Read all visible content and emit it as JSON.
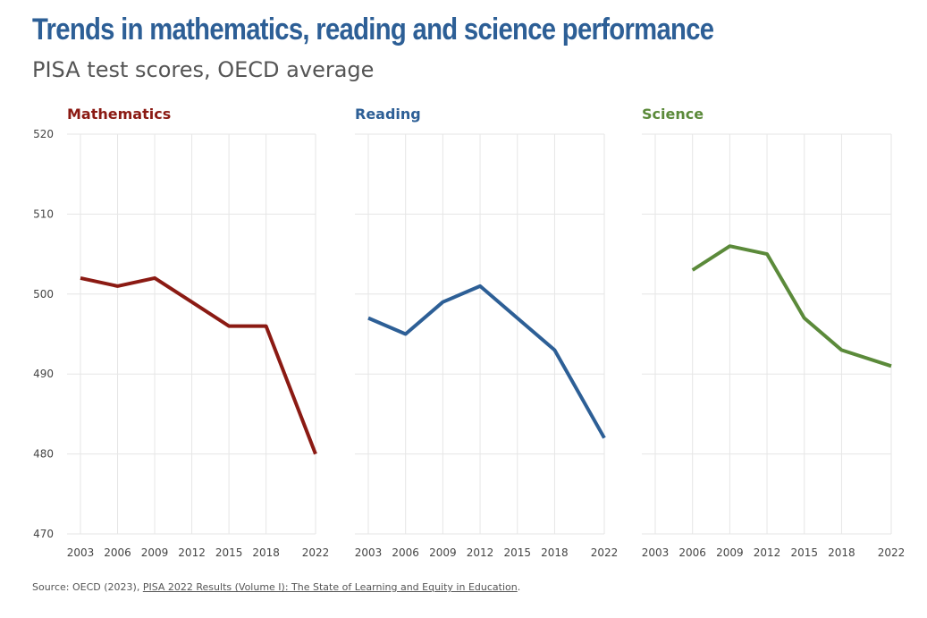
{
  "title": "Trends in mathematics, reading and science performance",
  "subtitle": "PISA test scores, OECD average",
  "source": {
    "prefix": "Source: OECD (2023), ",
    "link_text": "PISA 2022 Results (Volume I): The State of Learning and Equity in Education",
    "suffix": "."
  },
  "colors": {
    "mathematics": "#8b1a13",
    "reading": "#2d5f96",
    "science": "#5b8a3a",
    "grid": "#e6e6e6",
    "tick_text": "#444444"
  },
  "chart_data": [
    {
      "type": "line",
      "title": "Mathematics",
      "x": [
        2003,
        2006,
        2009,
        2012,
        2015,
        2018,
        2022
      ],
      "values": [
        502,
        501,
        502,
        499,
        496,
        496,
        480
      ],
      "xlabel": "",
      "ylabel": "",
      "ylim": [
        470,
        520
      ],
      "yticks": [
        470,
        480,
        490,
        500,
        510,
        520
      ],
      "color_key": "mathematics",
      "grid": true
    },
    {
      "type": "line",
      "title": "Reading",
      "x": [
        2003,
        2006,
        2009,
        2012,
        2015,
        2018,
        2022
      ],
      "values": [
        497,
        495,
        499,
        501,
        497,
        493,
        482
      ],
      "xlabel": "",
      "ylabel": "",
      "ylim": [
        470,
        520
      ],
      "yticks": [
        470,
        480,
        490,
        500,
        510,
        520
      ],
      "color_key": "reading",
      "grid": true
    },
    {
      "type": "line",
      "title": "Science",
      "x": [
        2003,
        2006,
        2009,
        2012,
        2015,
        2018,
        2022
      ],
      "values": [
        null,
        503,
        506,
        505,
        497,
        493,
        491
      ],
      "xlabel": "",
      "ylabel": "",
      "ylim": [
        470,
        520
      ],
      "yticks": [
        470,
        480,
        490,
        500,
        510,
        520
      ],
      "color_key": "science",
      "grid": true
    }
  ]
}
